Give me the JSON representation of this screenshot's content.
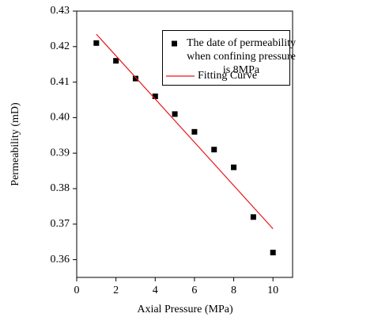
{
  "chart_data": {
    "type": "scatter",
    "x_label": "Axial Pressure (MPa)",
    "y_label": "Permeability (mD)",
    "xlim": [
      0,
      11
    ],
    "xticks": [
      0,
      2,
      4,
      6,
      8,
      10
    ],
    "ylim": [
      0.355,
      0.43
    ],
    "yticks": [
      0.36,
      0.37,
      0.38,
      0.39,
      {
        "value": 0.4,
        "label": "0.40"
      },
      0.41,
      0.42,
      0.43
    ],
    "legend": "upper right",
    "series": [
      {
        "name": "The date of permeability when confining pressure is 8MPa",
        "mode": "markers",
        "color": "#000000",
        "x": [
          1,
          2,
          3,
          4,
          5,
          6,
          7,
          8,
          9,
          10
        ],
        "values": [
          0.421,
          0.416,
          0.411,
          0.406,
          0.401,
          0.396,
          0.391,
          0.386,
          0.372,
          0.362
        ]
      },
      {
        "name": "Fitting Curve",
        "mode": "line",
        "color": "#e8161b",
        "x": [
          1,
          10
        ],
        "values": [
          0.4235,
          0.3687
        ]
      }
    ]
  }
}
